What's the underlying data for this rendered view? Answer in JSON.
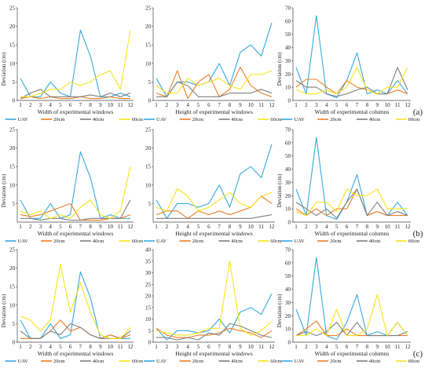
{
  "figure": {
    "row_labels": [
      "(a)",
      "(b)",
      "(c)"
    ]
  },
  "chart_data": [
    {
      "row": 0,
      "col": 0,
      "type": "line",
      "xlabel": "Width of experimental windows",
      "ylabel": "Deviation (cm)",
      "x": [
        1,
        2,
        3,
        4,
        5,
        6,
        7,
        8,
        9,
        10,
        11,
        12
      ],
      "ylim": [
        0,
        25
      ],
      "yticks": [
        0,
        5,
        10,
        15,
        20,
        25
      ],
      "legend": "bottom",
      "series": [
        {
          "name": "UAV",
          "color": "#35a9e0",
          "values": [
            6,
            1,
            1,
            5,
            2,
            1,
            19,
            12,
            1,
            1,
            2,
            1
          ]
        },
        {
          "name": "20cm",
          "color": "#ee7d22",
          "values": [
            0.5,
            1,
            0.5,
            1,
            0.5,
            0.5,
            1,
            0.5,
            0.5,
            1,
            0.5,
            0.5
          ]
        },
        {
          "name": "40cm",
          "color": "#7f7f7f",
          "values": [
            0.5,
            2,
            3,
            1,
            1,
            1,
            1,
            1.5,
            1,
            2,
            1,
            2
          ]
        },
        {
          "name": "60cm",
          "color": "#f7e31a",
          "values": [
            1,
            1,
            2,
            3,
            3,
            5,
            4,
            5,
            7,
            8,
            3,
            19
          ]
        }
      ]
    },
    {
      "row": 0,
      "col": 1,
      "type": "line",
      "xlabel": "Height of experimental windows",
      "ylabel": "",
      "x": [
        1,
        2,
        3,
        4,
        5,
        6,
        7,
        8,
        9,
        10,
        11,
        12
      ],
      "ylim": [
        0,
        25
      ],
      "yticks": [
        0,
        5,
        10,
        15,
        20,
        25
      ],
      "legend": "bottom",
      "series": [
        {
          "name": "UAV",
          "color": "#35a9e0",
          "values": [
            6,
            1,
            5,
            5,
            4,
            5,
            10,
            4,
            13,
            15,
            12,
            21
          ]
        },
        {
          "name": "20cm",
          "color": "#ee7d22",
          "values": [
            2,
            1,
            8,
            0.5,
            5,
            7,
            1,
            3,
            9,
            4,
            2,
            1
          ]
        },
        {
          "name": "40cm",
          "color": "#7f7f7f",
          "values": [
            1,
            1,
            5,
            4,
            1,
            1,
            1,
            2,
            2,
            2,
            3,
            2
          ]
        },
        {
          "name": "60cm",
          "color": "#f7e31a",
          "values": [
            4,
            2,
            2,
            6,
            4,
            5,
            6,
            4,
            3,
            7,
            7,
            8
          ]
        }
      ]
    },
    {
      "row": 0,
      "col": 2,
      "type": "line",
      "xlabel": "Width of experimental columns",
      "ylabel": "Deviation (cm)",
      "x": [
        1,
        2,
        3,
        4,
        5,
        6,
        7,
        8,
        9,
        10,
        11,
        12
      ],
      "ylim": [
        0,
        70
      ],
      "yticks": [
        0,
        10,
        20,
        30,
        40,
        50,
        60,
        70
      ],
      "legend": "bottom",
      "series": [
        {
          "name": "UAV",
          "color": "#35a9e0",
          "values": [
            25,
            5,
            64,
            5,
            2,
            15,
            36,
            5,
            8,
            5,
            15,
            5
          ]
        },
        {
          "name": "20cm",
          "color": "#ee7d22",
          "values": [
            10,
            16,
            16,
            10,
            5,
            15,
            10,
            8,
            5,
            5,
            8,
            5
          ]
        },
        {
          "name": "40cm",
          "color": "#7f7f7f",
          "values": [
            15,
            10,
            10,
            5,
            3,
            5,
            8,
            10,
            5,
            5,
            25,
            8
          ]
        },
        {
          "name": "60cm",
          "color": "#f7e31a",
          "values": [
            8,
            5,
            5,
            8,
            5,
            10,
            25,
            8,
            5,
            10,
            10,
            25
          ]
        }
      ]
    },
    {
      "row": 1,
      "col": 0,
      "type": "line",
      "xlabel": "Width of experimental windows",
      "ylabel": "Deviation (cm)",
      "x": [
        1,
        2,
        3,
        4,
        5,
        6,
        7,
        8,
        9,
        10,
        11,
        12
      ],
      "ylim": [
        0,
        25
      ],
      "yticks": [
        5,
        10,
        15,
        20,
        25
      ],
      "legend": "bottom",
      "series": [
        {
          "name": "UAV",
          "color": "#35a9e0",
          "values": [
            6,
            1,
            1,
            5,
            1,
            2,
            19,
            12,
            1,
            2,
            1,
            1
          ]
        },
        {
          "name": "20cm",
          "color": "#ee7d22",
          "values": [
            2,
            1.5,
            2,
            3,
            4,
            5,
            0.5,
            0.5,
            0.5,
            1,
            1,
            2
          ]
        },
        {
          "name": "40cm",
          "color": "#7f7f7f",
          "values": [
            1,
            1,
            0.5,
            1,
            1,
            0.5,
            0.5,
            1,
            1,
            1,
            1,
            6
          ]
        },
        {
          "name": "60cm",
          "color": "#f7e31a",
          "values": [
            3,
            2,
            3,
            1,
            2,
            1,
            4,
            6,
            2,
            1,
            3,
            15
          ]
        }
      ]
    },
    {
      "row": 1,
      "col": 1,
      "type": "line",
      "xlabel": "Height of experimental windows",
      "ylabel": "",
      "x": [
        1,
        2,
        3,
        4,
        5,
        6,
        7,
        8,
        9,
        10,
        11,
        12
      ],
      "ylim": [
        0,
        25
      ],
      "yticks": [
        5,
        10,
        15,
        20,
        25
      ],
      "legend": "bottom",
      "series": [
        {
          "name": "UAV",
          "color": "#35a9e0",
          "values": [
            6,
            1,
            5,
            5,
            4,
            5,
            10,
            4,
            13,
            15,
            12,
            21
          ]
        },
        {
          "name": "20cm",
          "color": "#ee7d22",
          "values": [
            2,
            3,
            3,
            1,
            3,
            2,
            3,
            2,
            3,
            4,
            7,
            5
          ]
        },
        {
          "name": "40cm",
          "color": "#7f7f7f",
          "values": [
            1,
            1,
            1,
            1,
            1,
            1,
            1,
            1,
            1,
            1,
            1.5,
            2
          ]
        },
        {
          "name": "60cm",
          "color": "#f7e31a",
          "values": [
            4,
            3,
            9,
            7,
            3,
            4,
            6,
            8,
            5,
            4,
            7,
            8
          ]
        }
      ]
    },
    {
      "row": 1,
      "col": 2,
      "type": "line",
      "xlabel": "Width of experimental columns",
      "ylabel": "Deviation (cm)",
      "x": [
        1,
        2,
        3,
        4,
        5,
        6,
        7,
        8,
        9,
        10,
        11,
        12
      ],
      "ylim": [
        0,
        70
      ],
      "yticks": [
        0,
        10,
        20,
        30,
        40,
        50,
        60,
        70
      ],
      "legend": "bottom",
      "series": [
        {
          "name": "UAV",
          "color": "#35a9e0",
          "values": [
            25,
            5,
            64,
            5,
            2,
            15,
            36,
            5,
            8,
            5,
            15,
            5
          ]
        },
        {
          "name": "20cm",
          "color": "#ee7d22",
          "values": [
            10,
            5,
            10,
            5,
            10,
            10,
            25,
            5,
            8,
            5,
            5,
            5
          ]
        },
        {
          "name": "40cm",
          "color": "#7f7f7f",
          "values": [
            15,
            10,
            5,
            10,
            3,
            15,
            25,
            5,
            15,
            5,
            8,
            5
          ]
        },
        {
          "name": "60cm",
          "color": "#f7e31a",
          "values": [
            8,
            5,
            15,
            15,
            8,
            25,
            20,
            20,
            25,
            10,
            10,
            10
          ]
        }
      ]
    },
    {
      "row": 2,
      "col": 0,
      "type": "line",
      "xlabel": "Width of experimental windows",
      "ylabel": "Deviation (cm)",
      "x": [
        1,
        2,
        3,
        4,
        5,
        6,
        7,
        8,
        9,
        10,
        11,
        12
      ],
      "ylim": [
        0,
        25
      ],
      "yticks": [
        0,
        5,
        10,
        15,
        20,
        25
      ],
      "legend": "bottom",
      "series": [
        {
          "name": "UAV",
          "color": "#35a9e0",
          "values": [
            6,
            1,
            1,
            5,
            1,
            2,
            19,
            12,
            1,
            2,
            1,
            1
          ]
        },
        {
          "name": "20cm",
          "color": "#ee7d22",
          "values": [
            1,
            1,
            1,
            3,
            6,
            3,
            4,
            2,
            1,
            2,
            1,
            2
          ]
        },
        {
          "name": "40cm",
          "color": "#7f7f7f",
          "values": [
            3,
            1,
            1,
            3,
            2,
            5,
            4,
            2,
            1,
            1,
            1,
            3
          ]
        },
        {
          "name": "60cm",
          "color": "#f7e31a",
          "values": [
            7,
            6,
            3,
            6,
            21,
            8,
            16,
            8,
            2,
            1,
            1,
            4
          ]
        }
      ]
    },
    {
      "row": 2,
      "col": 1,
      "type": "line",
      "xlabel": "Height of experimental windows",
      "ylabel": "",
      "x": [
        1,
        2,
        3,
        4,
        5,
        6,
        7,
        8,
        9,
        10,
        11,
        12
      ],
      "ylim": [
        0,
        40
      ],
      "yticks": [
        0,
        5,
        10,
        15,
        20,
        25,
        30,
        35,
        40
      ],
      "legend": "bottom",
      "series": [
        {
          "name": "UAV",
          "color": "#35a9e0",
          "values": [
            6,
            1,
            5,
            5,
            4,
            5,
            10,
            4,
            13,
            15,
            12,
            21
          ]
        },
        {
          "name": "20cm",
          "color": "#ee7d22",
          "values": [
            6,
            3,
            2,
            2,
            3,
            3,
            4,
            6,
            5,
            4,
            2,
            5
          ]
        },
        {
          "name": "40cm",
          "color": "#7f7f7f",
          "values": [
            2,
            2,
            1,
            2,
            1,
            4,
            3,
            8,
            7,
            5,
            3,
            2
          ]
        },
        {
          "name": "60cm",
          "color": "#f7e31a",
          "values": [
            5,
            4,
            3,
            3,
            4,
            6,
            6,
            35,
            6,
            3,
            5,
            9
          ]
        }
      ]
    },
    {
      "row": 2,
      "col": 2,
      "type": "line",
      "xlabel": "Width of experimental columns",
      "ylabel": "Deviation (cm)",
      "x": [
        1,
        2,
        3,
        4,
        5,
        6,
        7,
        8,
        9,
        10,
        11,
        12
      ],
      "ylim": [
        0,
        70
      ],
      "yticks": [
        0,
        10,
        20,
        30,
        40,
        50,
        60,
        70
      ],
      "legend": "bottom",
      "series": [
        {
          "name": "UAV",
          "color": "#35a9e0",
          "values": [
            25,
            5,
            64,
            5,
            2,
            15,
            36,
            5,
            8,
            5,
            15,
            5
          ]
        },
        {
          "name": "20cm",
          "color": "#ee7d22",
          "values": [
            5,
            10,
            16,
            5,
            5,
            10,
            5,
            5,
            5,
            5,
            5,
            5
          ]
        },
        {
          "name": "40cm",
          "color": "#7f7f7f",
          "values": [
            5,
            8,
            5,
            8,
            15,
            5,
            15,
            5,
            5,
            5,
            5,
            8
          ]
        },
        {
          "name": "60cm",
          "color": "#f7e31a",
          "values": [
            5,
            5,
            10,
            5,
            25,
            5,
            5,
            10,
            36,
            5,
            15,
            5
          ]
        }
      ]
    }
  ]
}
